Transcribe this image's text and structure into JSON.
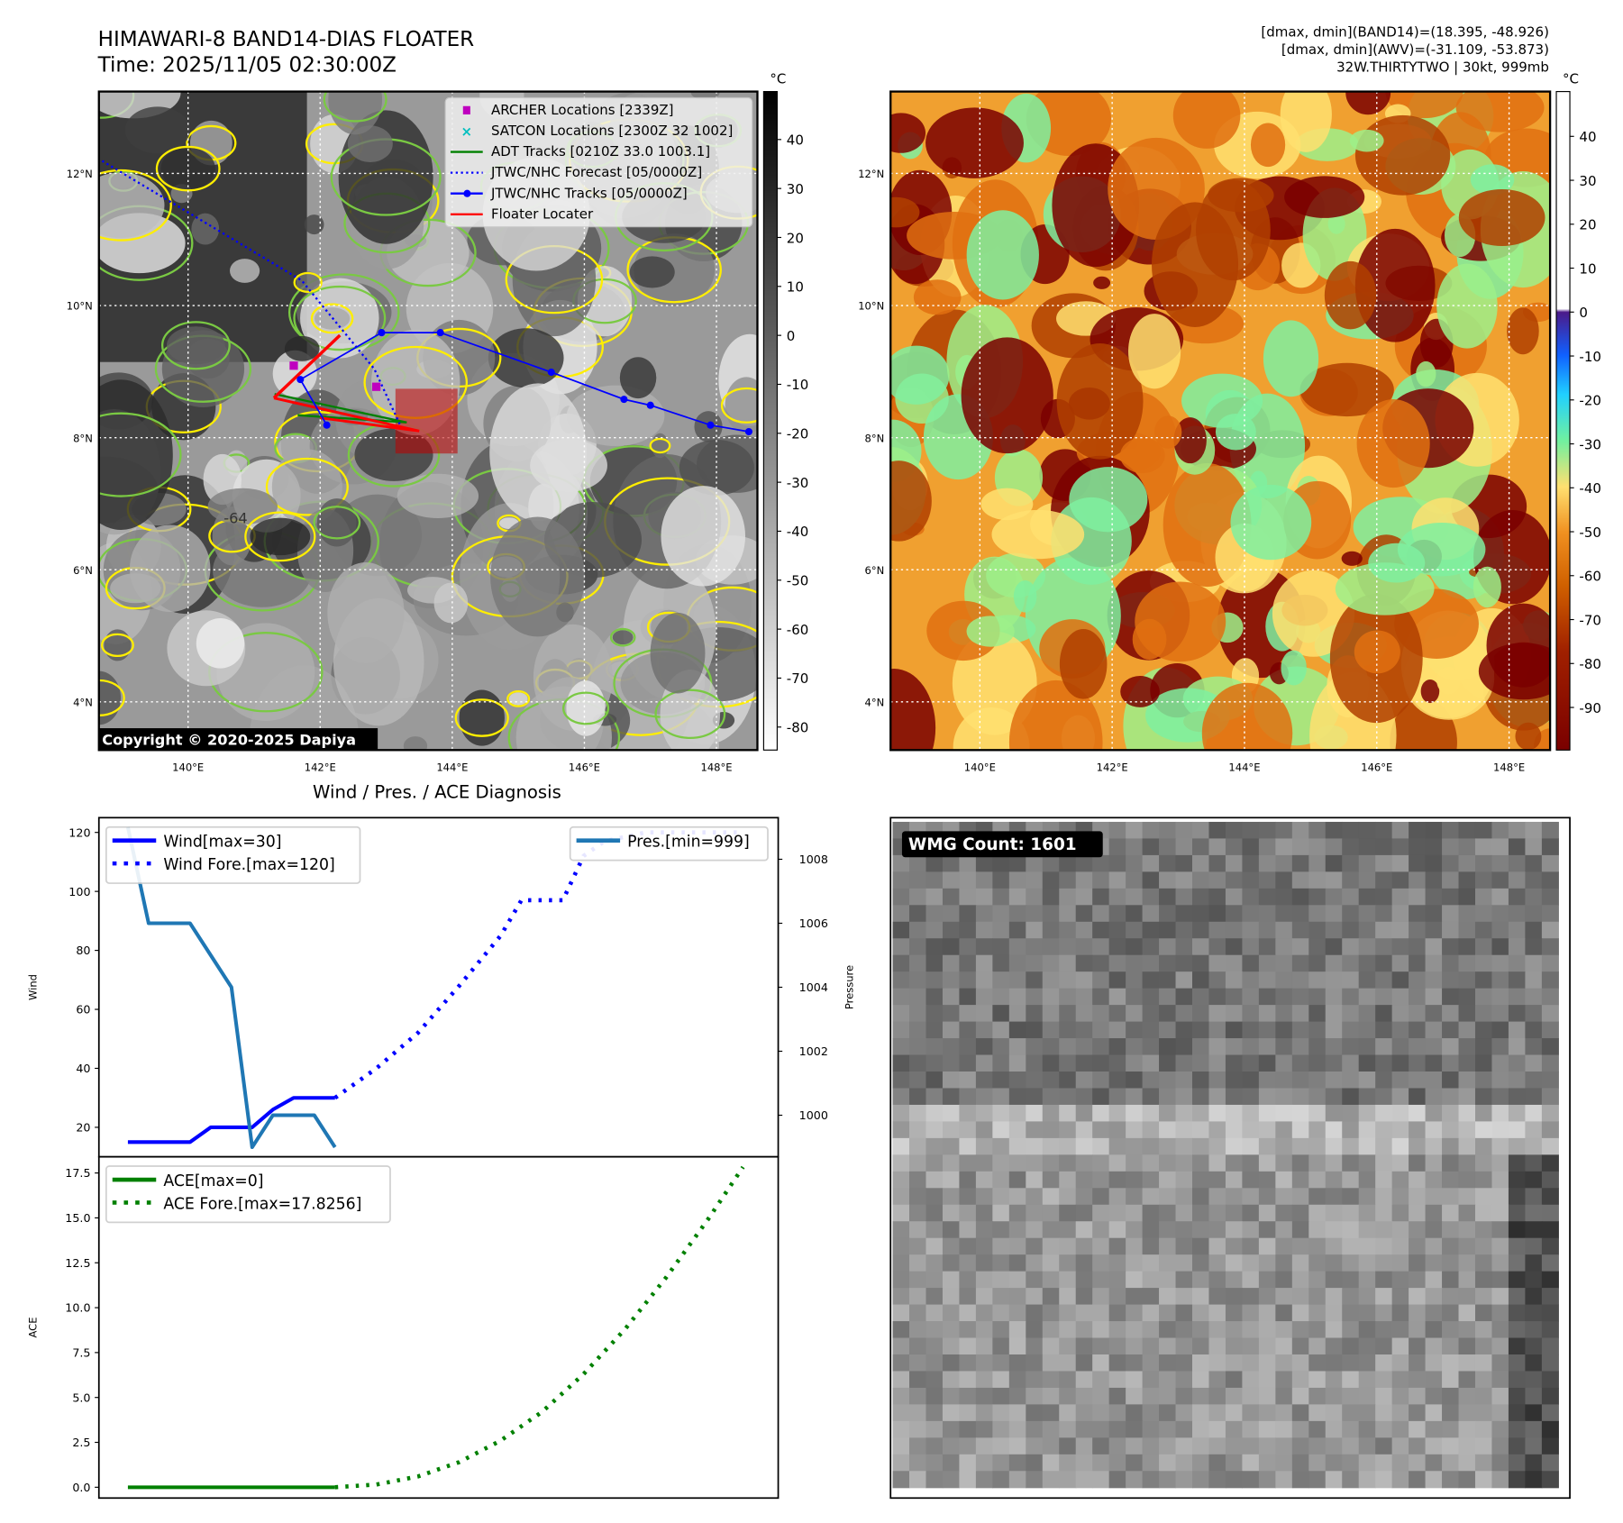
{
  "header": {
    "title": "HIMAWARI-8 BAND14-DIAS FLOATER",
    "time": "Time: 2025/11/05 02:30:00Z",
    "stats_band14": "[dmax, dmin](BAND14)=(18.395, -48.926)",
    "stats_awv": "[dmax, dmin](AWV)=(-31.109, -53.873)",
    "storm_info": "32W.THIRTYTWO | 30kt, 999mb"
  },
  "map": {
    "lon_ticks": [
      "140°E",
      "142°E",
      "144°E",
      "146°E",
      "148°E"
    ],
    "lon_values": [
      140,
      142,
      144,
      146,
      148
    ],
    "lat_ticks": [
      "12°N",
      "10°N",
      "8°N",
      "6°N",
      "4°N"
    ],
    "lat_values": [
      12,
      10,
      8,
      6,
      4
    ],
    "lon_range": [
      138.65,
      148.62
    ],
    "lat_range": [
      3.27,
      13.24
    ],
    "copyright": "Copyright © 2020-2025 Dapiya",
    "contour_label": "-64",
    "legend": [
      {
        "label": "ARCHER Locations [2339Z]",
        "color": "#bf00bf",
        "style": "square"
      },
      {
        "label": "SATCON Locations [2300Z 32 1002]",
        "color": "#00bfbf",
        "style": "x"
      },
      {
        "label": "ADT Tracks [0210Z 33.0 1003.1]",
        "color": "#008000",
        "style": "line"
      },
      {
        "label": "JTWC/NHC Forecast [05/0000Z]",
        "color": "#0000ff",
        "style": "dotted"
      },
      {
        "label": "JTWC/NHC Tracks [05/0000Z]",
        "color": "#0000ff",
        "style": "line-dot"
      },
      {
        "label": "Floater Locater",
        "color": "#ff0000",
        "style": "line"
      }
    ],
    "jtwc_track": [
      [
        142.1,
        8.19
      ],
      [
        141.7,
        8.88
      ],
      [
        142.93,
        9.59
      ],
      [
        143.82,
        9.59
      ],
      [
        145.5,
        8.99
      ],
      [
        146.6,
        8.58
      ],
      [
        147.0,
        8.49
      ],
      [
        147.91,
        8.19
      ],
      [
        148.49,
        8.09
      ]
    ],
    "jtwc_forecast": [
      [
        138.7,
        12.19
      ],
      [
        141.72,
        10.38
      ],
      [
        142.82,
        9.04
      ],
      [
        143.22,
        8.17
      ]
    ],
    "adt_track": [
      [
        141.31,
        8.66
      ],
      [
        143.31,
        8.23
      ],
      [
        141.66,
        8.34
      ]
    ],
    "archer": [
      [
        141.6,
        9.09
      ],
      [
        142.85,
        8.77
      ]
    ],
    "floater_box": [
      [
        143.14,
        8.74
      ],
      [
        144.08,
        7.76
      ]
    ]
  },
  "colorbar_left": {
    "unit": "°C",
    "ticks": [
      40,
      30,
      20,
      10,
      0,
      -10,
      -20,
      -30,
      -40,
      -50,
      -60,
      -70,
      -80
    ],
    "range": [
      -84.7,
      49.8
    ]
  },
  "colorbar_right": {
    "unit": "°C",
    "ticks": [
      40,
      30,
      20,
      10,
      0,
      -10,
      -20,
      -30,
      -40,
      -50,
      -60,
      -70,
      -80,
      -90
    ],
    "range": [
      -99.7,
      50.2
    ]
  },
  "chart_data": [
    {
      "type": "line",
      "title": "Wind / Pres. / ACE Diagnosis",
      "ylabel": "Wind",
      "y2label": "Pressure",
      "ylim": [
        10,
        125
      ],
      "y2lim": [
        998.7,
        1009.3
      ],
      "yticks": [
        20,
        40,
        60,
        80,
        100,
        120
      ],
      "y2ticks": [
        1000,
        1002,
        1004,
        1006,
        1008
      ],
      "legend_left": [
        "Wind[max=30]",
        "Wind Fore.[max=120]"
      ],
      "legend_right": [
        "Pres.[min=999]"
      ],
      "series": [
        {
          "name": "Wind",
          "color": "#0000ff",
          "x": [
            0,
            1,
            2,
            3,
            4,
            5,
            6,
            7,
            8,
            9,
            10
          ],
          "values": [
            15,
            15,
            15,
            15,
            20,
            20,
            20,
            26,
            30,
            30,
            30
          ]
        },
        {
          "name": "Wind Fore.",
          "color": "#0000ff",
          "style": "dotted",
          "x": [
            10,
            12,
            14,
            16,
            18,
            19,
            21,
            22,
            23,
            25,
            27,
            29.5
          ],
          "values": [
            30,
            40,
            52,
            68,
            85,
            97,
            97,
            112,
            117,
            120,
            120,
            120
          ]
        },
        {
          "name": "Pres.",
          "color": "#1f77b4",
          "axis": "right",
          "x": [
            0,
            1,
            2,
            3,
            4,
            5,
            6,
            7,
            8,
            9,
            10
          ],
          "values": [
            1009.0,
            1006.0,
            1006.0,
            1006.0,
            1005.0,
            1004.0,
            999.0,
            1000.0,
            1000.0,
            1000.0,
            999.0
          ]
        }
      ],
      "xlim": [
        -1.4,
        31.4
      ]
    },
    {
      "type": "line",
      "ylabel": "ACE",
      "ylim": [
        -0.6,
        18.4
      ],
      "yticks": [
        0.0,
        2.5,
        5.0,
        7.5,
        10.0,
        12.5,
        15.0,
        17.5
      ],
      "ytick_labels": [
        "0.0",
        "2.5",
        "5.0",
        "7.5",
        "10.0",
        "12.5",
        "15.0",
        "17.5"
      ],
      "legend": [
        "ACE[max=0]",
        "ACE Fore.[max=17.8256]"
      ],
      "series": [
        {
          "name": "ACE",
          "color": "#008000",
          "x": [
            0,
            10
          ],
          "values": [
            0,
            0
          ]
        },
        {
          "name": "ACE Fore.",
          "color": "#008000",
          "style": "dotted",
          "x": [
            10,
            12,
            14,
            16,
            18,
            20,
            22,
            24,
            26,
            28,
            29.7
          ],
          "values": [
            0,
            0.15,
            0.6,
            1.4,
            2.6,
            4.2,
            6.3,
            8.8,
            11.7,
            14.9,
            17.83
          ]
        }
      ],
      "xlim": [
        -1.4,
        31.4
      ]
    }
  ],
  "wmg": {
    "label": "WMG Count: 1601"
  }
}
